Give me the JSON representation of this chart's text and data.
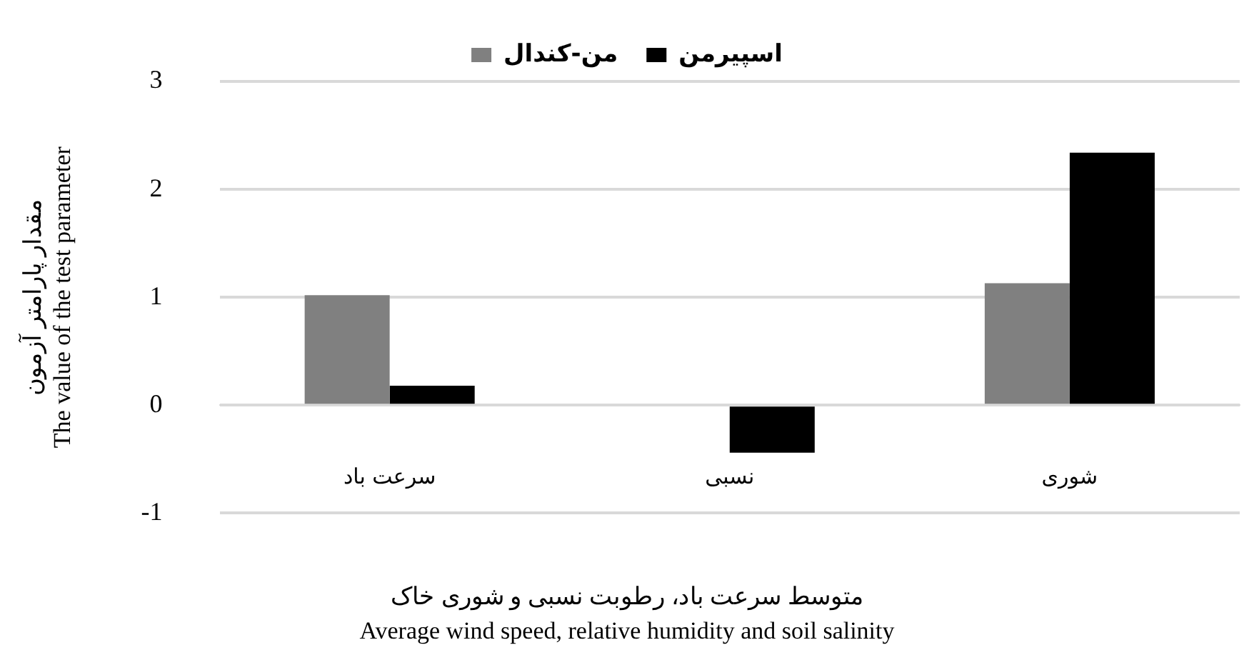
{
  "chart_data": {
    "type": "bar",
    "categories": [
      "سرعت باد",
      "نسبی",
      "شوری"
    ],
    "series": [
      {
        "name": "من-کندال",
        "color": "#808080",
        "values": [
          1.02,
          0,
          1.13
        ]
      },
      {
        "name": "اسپیرمن",
        "color": "#000000",
        "values": [
          0.18,
          -0.44,
          2.34
        ]
      }
    ],
    "xlabel": "متوسط سرعت باد، رطوبت نسبی و شوری خاک\nAverage  wind  speed, relative  humidity  and soil salinity",
    "ylabel": "مقدار پارامتر آزمون\nThe value of the test parameter",
    "ylim": [
      -1,
      3
    ],
    "yticks": [
      -1,
      0,
      1,
      2,
      3
    ],
    "grid": "y",
    "legend": "top"
  }
}
